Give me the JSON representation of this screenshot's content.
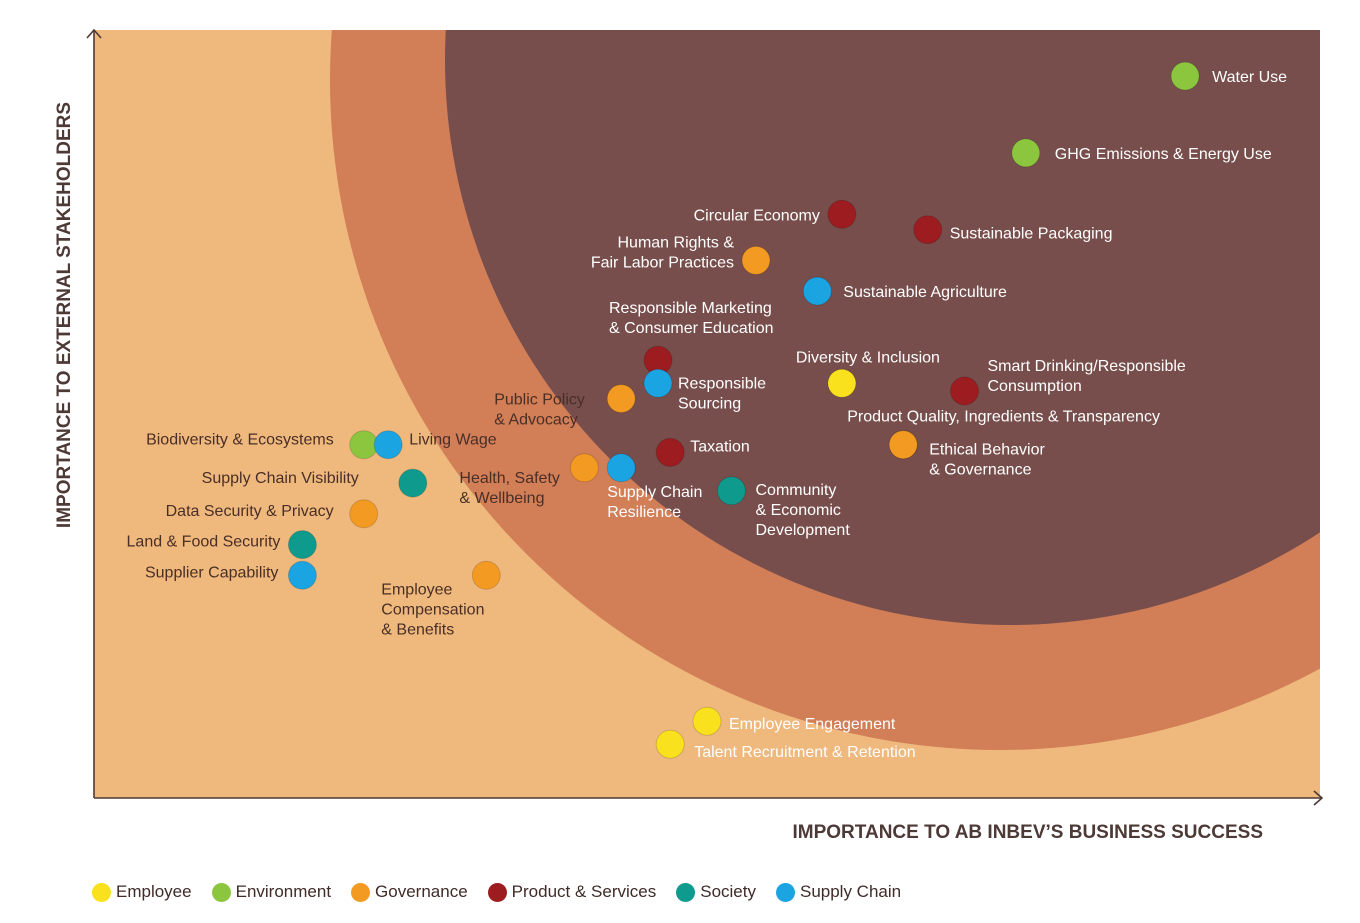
{
  "chart_data": {
    "type": "scatter",
    "title": "",
    "xlabel": "IMPORTANCE TO AB INBEV’S BUSINESS SUCCESS",
    "ylabel": "IMPORTANCE TO EXTERNAL STAKEHOLDERS",
    "xlim": [
      0,
      100
    ],
    "ylim": [
      0,
      100
    ],
    "grid": false,
    "legend_position": "bottom-left",
    "categories": [
      {
        "key": "employee",
        "name": "Employee",
        "color": "#f9e21d"
      },
      {
        "key": "environment",
        "name": "Environment",
        "color": "#8bc63e"
      },
      {
        "key": "governance",
        "name": "Governance",
        "color": "#f39a22"
      },
      {
        "key": "product",
        "name": "Product & Services",
        "color": "#9d1c20"
      },
      {
        "key": "society",
        "name": "Society",
        "color": "#0e9a8d"
      },
      {
        "key": "supply",
        "name": "Supply Chain",
        "color": "#1ba4e2"
      }
    ],
    "points": [
      {
        "label": [
          "Water Use"
        ],
        "category": "environment",
        "x": 89,
        "y": 94
      },
      {
        "label": [
          "GHG Emissions & Energy Use"
        ],
        "category": "environment",
        "x": 76,
        "y": 84
      },
      {
        "label": [
          "Circular Economy"
        ],
        "category": "product",
        "x": 61,
        "y": 76
      },
      {
        "label": [
          "Sustainable Packaging"
        ],
        "category": "product",
        "x": 68,
        "y": 74
      },
      {
        "label": [
          "Human Rights &",
          "Fair Labor Practices"
        ],
        "category": "governance",
        "x": 54,
        "y": 70
      },
      {
        "label": [
          "Sustainable Agriculture"
        ],
        "category": "supply",
        "x": 59,
        "y": 66
      },
      {
        "label": [
          "Responsible Marketing",
          "& Consumer Education"
        ],
        "category": "product",
        "x": 46,
        "y": 57
      },
      {
        "label": [
          "Responsible",
          "Sourcing"
        ],
        "category": "supply",
        "x": 46,
        "y": 54
      },
      {
        "label": [
          "Public Policy",
          "& Advocacy"
        ],
        "category": "governance",
        "x": 43,
        "y": 52
      },
      {
        "label": [
          "Diversity & Inclusion"
        ],
        "category": "employee",
        "x": 61,
        "y": 54
      },
      {
        "label": [
          "Smart Drinking/Responsible",
          "Consumption"
        ],
        "category": "product",
        "x": 71,
        "y": 53
      },
      {
        "label": [
          "Product Quality, Ingredients & Transparency"
        ],
        "category": "governance",
        "x": 66,
        "y": 46
      },
      {
        "label": [
          "Ethical Behavior",
          "&  Governance"
        ],
        "category": "governance",
        "x": 66,
        "y": 46
      },
      {
        "label": [
          "Taxation"
        ],
        "category": "product",
        "x": 47,
        "y": 45
      },
      {
        "label": [
          "Health, Safety",
          "& Wellbeing"
        ],
        "category": "governance",
        "x": 40,
        "y": 43
      },
      {
        "label": [
          "Supply Chain",
          "Resilience"
        ],
        "category": "supply",
        "x": 43,
        "y": 43
      },
      {
        "label": [
          "Community",
          "& Economic",
          "Development"
        ],
        "category": "society",
        "x": 52,
        "y": 40
      },
      {
        "label": [
          "Biodiversity & Ecosystems"
        ],
        "category": "environment",
        "x": 22,
        "y": 46
      },
      {
        "label": [
          "Living Wage"
        ],
        "category": "supply",
        "x": 24,
        "y": 46
      },
      {
        "label": [
          "Supply Chain Visibility"
        ],
        "category": "society",
        "x": 26,
        "y": 41
      },
      {
        "label": [
          "Data Security & Privacy"
        ],
        "category": "governance",
        "x": 22,
        "y": 37
      },
      {
        "label": [
          "Land & Food Security"
        ],
        "category": "society",
        "x": 17,
        "y": 33
      },
      {
        "label": [
          "Supplier Capability"
        ],
        "category": "supply",
        "x": 17,
        "y": 29
      },
      {
        "label": [
          "Employee",
          "Compensation",
          "& Benefits"
        ],
        "category": "governance",
        "x": 32,
        "y": 29
      },
      {
        "label": [
          "Employee Engagement"
        ],
        "category": "employee",
        "x": 50,
        "y": 10
      },
      {
        "label": [
          "Talent Recruitment & Retention"
        ],
        "category": "employee",
        "x": 47,
        "y": 7
      }
    ]
  }
}
